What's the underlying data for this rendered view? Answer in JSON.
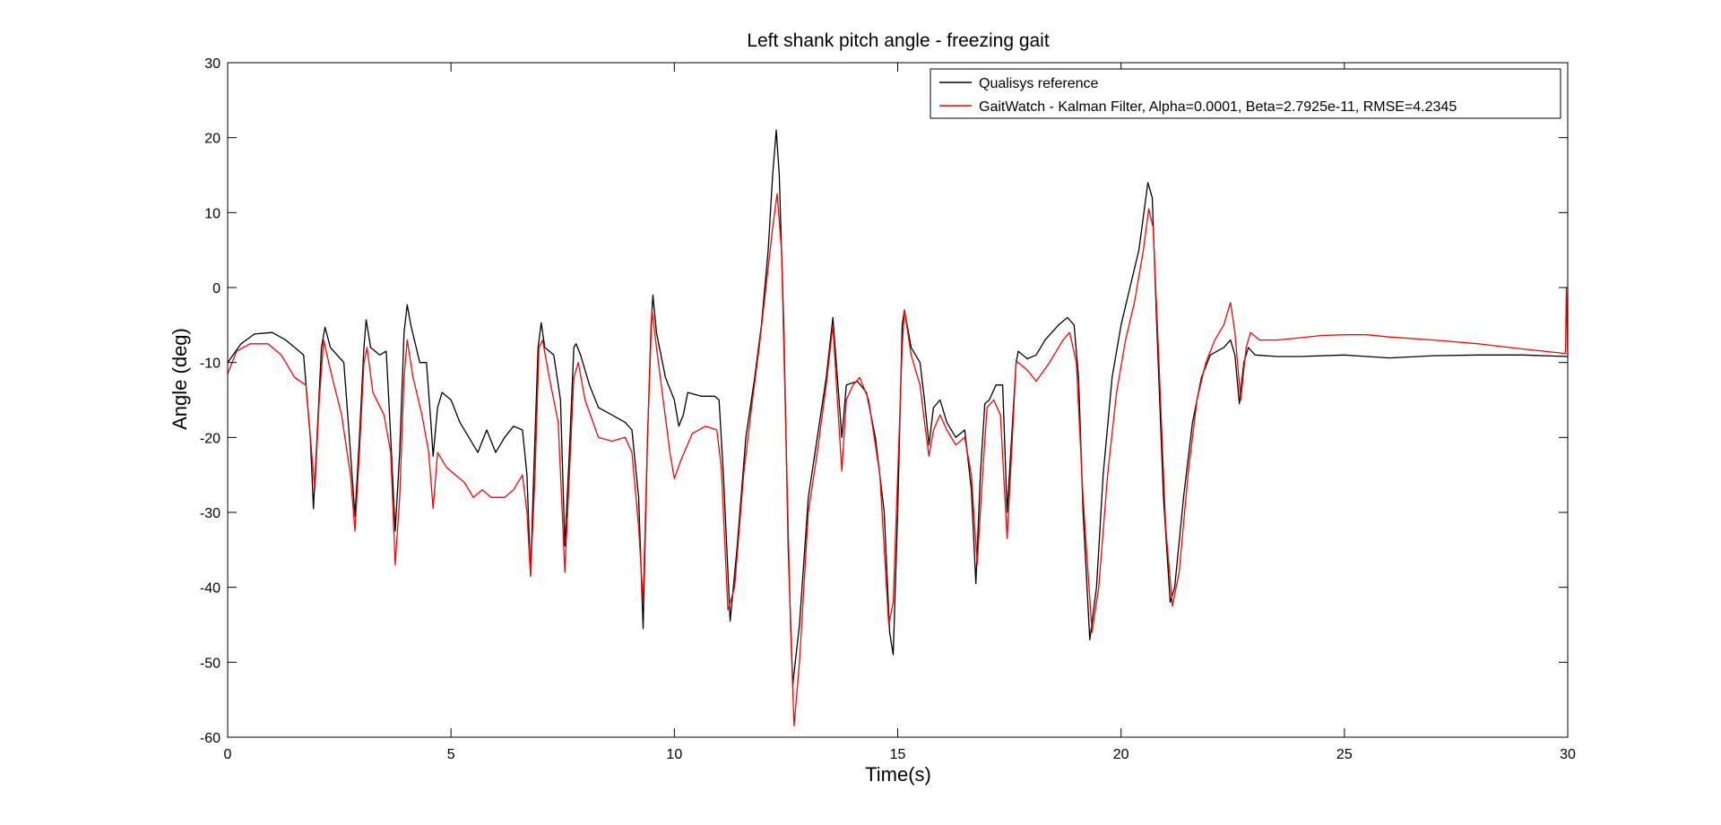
{
  "chart_data": {
    "type": "line",
    "title": "Left shank pitch angle - freezing gait",
    "xlabel": "Time(s)",
    "ylabel": "Angle (deg)",
    "xlim": [
      0,
      30
    ],
    "ylim": [
      -60,
      30
    ],
    "xticks": [
      0,
      5,
      10,
      15,
      20,
      25,
      30
    ],
    "yticks": [
      -60,
      -50,
      -40,
      -30,
      -20,
      -10,
      0,
      10,
      20,
      30
    ],
    "grid": false,
    "legend_position": "top-right",
    "series": [
      {
        "name": "Qualisys reference",
        "color": "#000000",
        "points": [
          [
            0,
            -10
          ],
          [
            0.3,
            -7.5
          ],
          [
            0.6,
            -6.2
          ],
          [
            1,
            -6
          ],
          [
            1.3,
            -7
          ],
          [
            1.5,
            -8
          ],
          [
            1.7,
            -9
          ],
          [
            1.85,
            -20
          ],
          [
            1.92,
            -29.5
          ],
          [
            2.0,
            -20
          ],
          [
            2.1,
            -8
          ],
          [
            2.18,
            -5.3
          ],
          [
            2.3,
            -8
          ],
          [
            2.6,
            -10
          ],
          [
            2.75,
            -22
          ],
          [
            2.85,
            -30.5
          ],
          [
            2.95,
            -20
          ],
          [
            3.05,
            -8
          ],
          [
            3.1,
            -4.3
          ],
          [
            3.2,
            -8
          ],
          [
            3.4,
            -9
          ],
          [
            3.55,
            -8.5
          ],
          [
            3.65,
            -20
          ],
          [
            3.75,
            -32.5
          ],
          [
            3.85,
            -22
          ],
          [
            3.95,
            -6
          ],
          [
            4.02,
            -2.3
          ],
          [
            4.1,
            -5
          ],
          [
            4.3,
            -10
          ],
          [
            4.45,
            -10
          ],
          [
            4.55,
            -18
          ],
          [
            4.6,
            -22.5
          ],
          [
            4.7,
            -16
          ],
          [
            4.8,
            -14
          ],
          [
            5.0,
            -15
          ],
          [
            5.2,
            -18
          ],
          [
            5.4,
            -20
          ],
          [
            5.6,
            -22
          ],
          [
            5.8,
            -19
          ],
          [
            6.0,
            -22
          ],
          [
            6.2,
            -20
          ],
          [
            6.4,
            -18.5
          ],
          [
            6.6,
            -19
          ],
          [
            6.7,
            -25
          ],
          [
            6.78,
            -38.5
          ],
          [
            6.85,
            -25
          ],
          [
            6.95,
            -8
          ],
          [
            7.02,
            -4.7
          ],
          [
            7.1,
            -8
          ],
          [
            7.3,
            -9
          ],
          [
            7.45,
            -15
          ],
          [
            7.55,
            -34.5
          ],
          [
            7.65,
            -22
          ],
          [
            7.75,
            -8
          ],
          [
            7.8,
            -7.5
          ],
          [
            7.9,
            -9
          ],
          [
            8.1,
            -13
          ],
          [
            8.3,
            -16
          ],
          [
            8.6,
            -17
          ],
          [
            8.9,
            -18
          ],
          [
            9.05,
            -19
          ],
          [
            9.2,
            -28
          ],
          [
            9.3,
            -45.5
          ],
          [
            9.4,
            -20
          ],
          [
            9.48,
            -5
          ],
          [
            9.52,
            -1
          ],
          [
            9.6,
            -6
          ],
          [
            9.8,
            -12
          ],
          [
            10.0,
            -15
          ],
          [
            10.1,
            -18.5
          ],
          [
            10.2,
            -17
          ],
          [
            10.3,
            -14
          ],
          [
            10.6,
            -14.5
          ],
          [
            10.9,
            -14.5
          ],
          [
            11.0,
            -15
          ],
          [
            11.1,
            -25
          ],
          [
            11.25,
            -44.5
          ],
          [
            11.4,
            -35
          ],
          [
            11.6,
            -20
          ],
          [
            11.8,
            -12
          ],
          [
            11.95,
            -5
          ],
          [
            12.1,
            5
          ],
          [
            12.2,
            15
          ],
          [
            12.28,
            21
          ],
          [
            12.35,
            15
          ],
          [
            12.45,
            -5
          ],
          [
            12.55,
            -35
          ],
          [
            12.65,
            -53
          ],
          [
            12.8,
            -45
          ],
          [
            13.0,
            -28
          ],
          [
            13.2,
            -20
          ],
          [
            13.4,
            -12
          ],
          [
            13.55,
            -4
          ],
          [
            13.65,
            -12
          ],
          [
            13.75,
            -20
          ],
          [
            13.85,
            -13
          ],
          [
            14.1,
            -12.5
          ],
          [
            14.3,
            -14
          ],
          [
            14.5,
            -20
          ],
          [
            14.7,
            -30
          ],
          [
            14.82,
            -46
          ],
          [
            14.9,
            -49
          ],
          [
            15.0,
            -30
          ],
          [
            15.1,
            -5
          ],
          [
            15.15,
            -3
          ],
          [
            15.3,
            -8
          ],
          [
            15.5,
            -10
          ],
          [
            15.6,
            -15
          ],
          [
            15.7,
            -21
          ],
          [
            15.8,
            -16
          ],
          [
            15.95,
            -15
          ],
          [
            16.1,
            -18
          ],
          [
            16.3,
            -20
          ],
          [
            16.5,
            -19
          ],
          [
            16.65,
            -27
          ],
          [
            16.75,
            -39.5
          ],
          [
            16.85,
            -25
          ],
          [
            16.95,
            -15.5
          ],
          [
            17.05,
            -15
          ],
          [
            17.2,
            -13
          ],
          [
            17.35,
            -13
          ],
          [
            17.45,
            -30
          ],
          [
            17.55,
            -20
          ],
          [
            17.65,
            -10
          ],
          [
            17.7,
            -8.5
          ],
          [
            17.9,
            -9.5
          ],
          [
            18.1,
            -9
          ],
          [
            18.3,
            -7
          ],
          [
            18.6,
            -5
          ],
          [
            18.8,
            -4
          ],
          [
            18.95,
            -5
          ],
          [
            19.05,
            -12
          ],
          [
            19.15,
            -30
          ],
          [
            19.3,
            -47
          ],
          [
            19.45,
            -40
          ],
          [
            19.6,
            -25
          ],
          [
            19.8,
            -12
          ],
          [
            20.0,
            -5
          ],
          [
            20.2,
            0
          ],
          [
            20.4,
            5
          ],
          [
            20.6,
            14
          ],
          [
            20.7,
            12
          ],
          [
            20.8,
            -5
          ],
          [
            20.95,
            -28
          ],
          [
            21.1,
            -42
          ],
          [
            21.2,
            -40
          ],
          [
            21.4,
            -28
          ],
          [
            21.6,
            -18
          ],
          [
            21.8,
            -12
          ],
          [
            22.0,
            -9
          ],
          [
            22.3,
            -8
          ],
          [
            22.45,
            -7
          ],
          [
            22.55,
            -9
          ],
          [
            22.65,
            -15.5
          ],
          [
            22.75,
            -10
          ],
          [
            22.85,
            -8
          ],
          [
            23.0,
            -9
          ],
          [
            23.5,
            -9.2
          ],
          [
            24.0,
            -9.2
          ],
          [
            25.0,
            -9
          ],
          [
            26.0,
            -9.4
          ],
          [
            27.0,
            -9.1
          ],
          [
            28.0,
            -9
          ],
          [
            29.0,
            -9
          ],
          [
            30.0,
            -9.2
          ]
        ]
      },
      {
        "name": "GaitWatch - Kalman Filter, Alpha=0.0001, Beta=2.7925e-11, RMSE=4.2345",
        "color": "#ff0000",
        "points": [
          [
            0,
            -11.5
          ],
          [
            0.2,
            -8.5
          ],
          [
            0.5,
            -7.5
          ],
          [
            0.9,
            -7.5
          ],
          [
            1.2,
            -9
          ],
          [
            1.5,
            -12
          ],
          [
            1.75,
            -13
          ],
          [
            1.88,
            -22
          ],
          [
            1.95,
            -27
          ],
          [
            2.05,
            -15
          ],
          [
            2.15,
            -7
          ],
          [
            2.3,
            -11
          ],
          [
            2.55,
            -17
          ],
          [
            2.75,
            -25
          ],
          [
            2.85,
            -32.5
          ],
          [
            2.95,
            -22
          ],
          [
            3.05,
            -10
          ],
          [
            3.12,
            -8
          ],
          [
            3.25,
            -14
          ],
          [
            3.5,
            -17
          ],
          [
            3.65,
            -22
          ],
          [
            3.75,
            -37
          ],
          [
            3.85,
            -28
          ],
          [
            3.95,
            -12
          ],
          [
            4.02,
            -7
          ],
          [
            4.15,
            -12
          ],
          [
            4.35,
            -17
          ],
          [
            4.5,
            -22
          ],
          [
            4.6,
            -29.5
          ],
          [
            4.7,
            -22
          ],
          [
            4.9,
            -24
          ],
          [
            5.1,
            -25
          ],
          [
            5.3,
            -26
          ],
          [
            5.5,
            -28
          ],
          [
            5.7,
            -27
          ],
          [
            5.9,
            -28
          ],
          [
            6.2,
            -28
          ],
          [
            6.4,
            -27
          ],
          [
            6.6,
            -25
          ],
          [
            6.7,
            -30
          ],
          [
            6.78,
            -38.5
          ],
          [
            6.88,
            -25
          ],
          [
            6.97,
            -8
          ],
          [
            7.05,
            -7
          ],
          [
            7.2,
            -12
          ],
          [
            7.4,
            -18
          ],
          [
            7.55,
            -38
          ],
          [
            7.65,
            -25
          ],
          [
            7.75,
            -12
          ],
          [
            7.85,
            -10
          ],
          [
            8.0,
            -15
          ],
          [
            8.3,
            -20
          ],
          [
            8.6,
            -20.5
          ],
          [
            8.9,
            -20
          ],
          [
            9.05,
            -22
          ],
          [
            9.2,
            -32
          ],
          [
            9.3,
            -42
          ],
          [
            9.4,
            -20
          ],
          [
            9.5,
            -3
          ],
          [
            9.6,
            -8
          ],
          [
            9.75,
            -15
          ],
          [
            9.9,
            -22
          ],
          [
            10.0,
            -25.5
          ],
          [
            10.15,
            -23
          ],
          [
            10.4,
            -19.5
          ],
          [
            10.7,
            -18.5
          ],
          [
            10.95,
            -19
          ],
          [
            11.05,
            -24
          ],
          [
            11.2,
            -43
          ],
          [
            11.35,
            -40
          ],
          [
            11.55,
            -25
          ],
          [
            11.75,
            -15
          ],
          [
            11.9,
            -8
          ],
          [
            12.05,
            0
          ],
          [
            12.2,
            8
          ],
          [
            12.3,
            12.5
          ],
          [
            12.4,
            5
          ],
          [
            12.5,
            -20
          ],
          [
            12.6,
            -45
          ],
          [
            12.68,
            -58.5
          ],
          [
            12.8,
            -50
          ],
          [
            13.0,
            -30
          ],
          [
            13.2,
            -22
          ],
          [
            13.4,
            -13
          ],
          [
            13.55,
            -5
          ],
          [
            13.65,
            -15
          ],
          [
            13.75,
            -24.5
          ],
          [
            13.85,
            -15
          ],
          [
            14.0,
            -13
          ],
          [
            14.15,
            -12
          ],
          [
            14.35,
            -15
          ],
          [
            14.6,
            -25
          ],
          [
            14.8,
            -45
          ],
          [
            14.9,
            -42
          ],
          [
            15.0,
            -25
          ],
          [
            15.1,
            -8
          ],
          [
            15.15,
            -3
          ],
          [
            15.3,
            -9
          ],
          [
            15.5,
            -13
          ],
          [
            15.6,
            -18
          ],
          [
            15.7,
            -22.5
          ],
          [
            15.8,
            -19
          ],
          [
            15.95,
            -17
          ],
          [
            16.1,
            -19
          ],
          [
            16.3,
            -21
          ],
          [
            16.5,
            -20
          ],
          [
            16.65,
            -25
          ],
          [
            16.78,
            -37
          ],
          [
            16.9,
            -25
          ],
          [
            17.0,
            -16
          ],
          [
            17.15,
            -15
          ],
          [
            17.3,
            -17
          ],
          [
            17.45,
            -33.5
          ],
          [
            17.55,
            -22
          ],
          [
            17.65,
            -10
          ],
          [
            17.7,
            -10
          ],
          [
            17.9,
            -11
          ],
          [
            18.1,
            -12.5
          ],
          [
            18.4,
            -10
          ],
          [
            18.7,
            -7
          ],
          [
            18.85,
            -6
          ],
          [
            19.0,
            -10
          ],
          [
            19.15,
            -28
          ],
          [
            19.35,
            -46
          ],
          [
            19.5,
            -40
          ],
          [
            19.7,
            -25
          ],
          [
            19.9,
            -14
          ],
          [
            20.1,
            -7
          ],
          [
            20.3,
            -2
          ],
          [
            20.5,
            5
          ],
          [
            20.62,
            10.5
          ],
          [
            20.72,
            8
          ],
          [
            20.85,
            -10
          ],
          [
            21.0,
            -32
          ],
          [
            21.15,
            -42.5
          ],
          [
            21.3,
            -38
          ],
          [
            21.5,
            -25
          ],
          [
            21.7,
            -15
          ],
          [
            21.9,
            -10
          ],
          [
            22.1,
            -7
          ],
          [
            22.3,
            -5
          ],
          [
            22.45,
            -2
          ],
          [
            22.55,
            -6
          ],
          [
            22.68,
            -15
          ],
          [
            22.8,
            -8
          ],
          [
            22.9,
            -6
          ],
          [
            23.1,
            -7
          ],
          [
            23.5,
            -7
          ],
          [
            24.0,
            -6.7
          ],
          [
            24.5,
            -6.4
          ],
          [
            25.0,
            -6.3
          ],
          [
            25.5,
            -6.3
          ],
          [
            26.0,
            -6.6
          ],
          [
            27.0,
            -7
          ],
          [
            28.0,
            -7.5
          ],
          [
            29.0,
            -8.2
          ],
          [
            29.95,
            -8.8
          ],
          [
            29.97,
            0
          ],
          [
            30.0,
            -9
          ]
        ]
      }
    ]
  }
}
